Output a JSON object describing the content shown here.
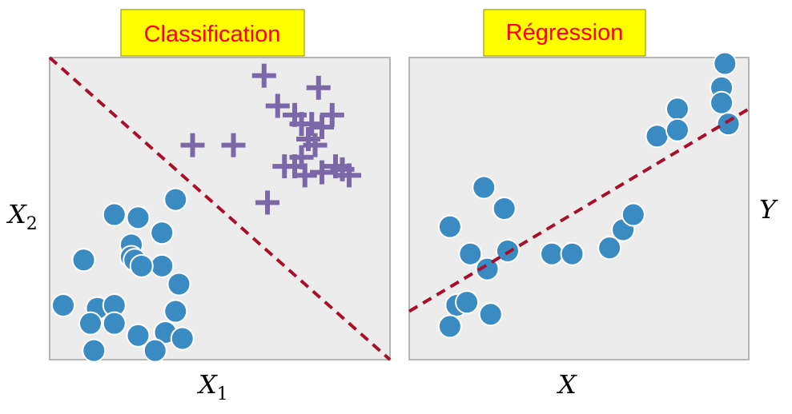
{
  "colors": {
    "title_bg": "#ffff00",
    "title_text": "#ff0000",
    "panel_bg": "#ececec",
    "panel_border": "#b4b4b4",
    "point_blue": "#3a8bc2",
    "point_purple": "#7a68a8",
    "boundary_line": "#a80f2c"
  },
  "chart_data": [
    {
      "type": "scatter",
      "title": "Classification",
      "xlabel": "X",
      "xlabel_sub": "1",
      "ylabel": "X",
      "ylabel_sub": "2",
      "xlim": [
        0,
        100
      ],
      "ylim": [
        0,
        100
      ],
      "grid": false,
      "boundary": {
        "style": "dashed",
        "x": [
          0,
          100
        ],
        "y": [
          100,
          0
        ]
      },
      "series": [
        {
          "marker": "circle",
          "color": "#3a8bc2",
          "x": [
            19,
            26,
            33,
            37,
            10,
            24,
            24,
            25,
            27,
            33,
            38,
            14,
            19,
            4,
            12,
            19,
            37,
            13,
            26,
            34,
            31,
            39
          ],
          "y": [
            48,
            47,
            31,
            53,
            33,
            38,
            34,
            33,
            31,
            42,
            25,
            17,
            18,
            18,
            12,
            12,
            16,
            3,
            8,
            9,
            3,
            7
          ]
        },
        {
          "marker": "plus",
          "color": "#7a68a8",
          "x": [
            63,
            67,
            79,
            72,
            74,
            77,
            80,
            83,
            78,
            42,
            54,
            76,
            74,
            72,
            69,
            75,
            80,
            84,
            88,
            86,
            64
          ],
          "y": [
            94,
            84,
            90,
            81,
            78,
            78,
            77,
            81,
            71,
            71,
            71,
            73,
            67,
            64,
            64,
            61,
            62,
            64,
            61,
            63,
            52
          ]
        }
      ]
    },
    {
      "type": "scatter",
      "title": "Régression",
      "xlabel": "X",
      "ylabel": "Y",
      "xlim": [
        0,
        100
      ],
      "ylim": [
        0,
        100
      ],
      "grid": false,
      "fit_line": {
        "style": "dashed",
        "x": [
          0,
          100
        ],
        "y": [
          16,
          83
        ]
      },
      "series": [
        {
          "marker": "circle",
          "color": "#3a8bc2",
          "x": [
            12,
            22,
            28,
            18,
            29,
            14,
            23,
            17,
            12,
            24,
            42,
            48,
            59,
            63,
            66,
            73,
            79,
            92,
            92,
            94,
            93,
            79
          ],
          "y": [
            44,
            57,
            50,
            35,
            36,
            18,
            30,
            19,
            11,
            15,
            35,
            35,
            37,
            43,
            48,
            74,
            83,
            90,
            85,
            78,
            98,
            76
          ]
        }
      ]
    }
  ]
}
